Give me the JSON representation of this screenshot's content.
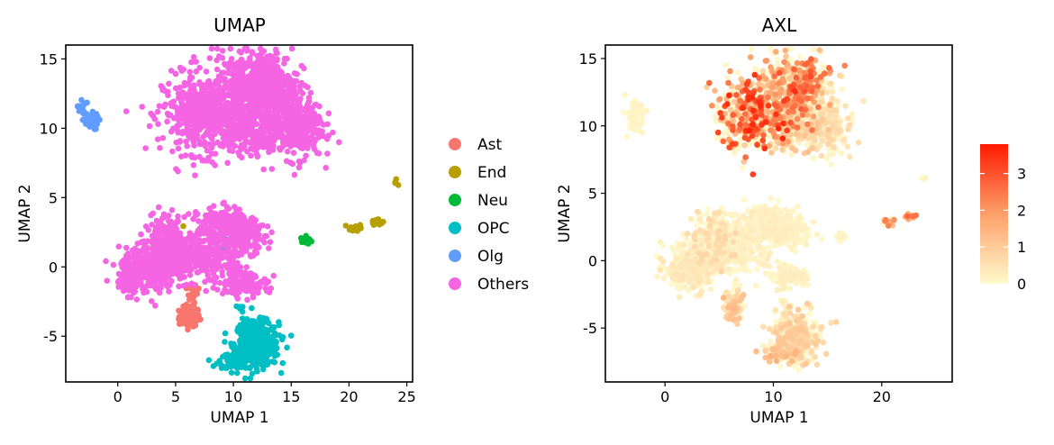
{
  "chart_data": [
    {
      "type": "scatter",
      "title": "UMAP",
      "xlabel": "UMAP 1",
      "ylabel": "UMAP 2",
      "xlim": [
        -4.5,
        25.5
      ],
      "ylim": [
        -8.3,
        16.0
      ],
      "xticks": [
        0,
        5,
        10,
        15,
        20,
        25
      ],
      "yticks": [
        -5,
        0,
        5,
        10,
        15
      ],
      "ytick_labels": [
        "-5",
        "0",
        "5",
        "10",
        "15"
      ],
      "legend_position": "right",
      "grid": false,
      "series": [
        {
          "name": "Ast",
          "color": "#F8766D",
          "clusters": [
            {
              "cx": 6.2,
              "cy": -3.6,
              "sx": 0.45,
              "sy": 0.35,
              "n": 120
            },
            {
              "cx": 6.4,
              "cy": -2.2,
              "sx": 0.2,
              "sy": 0.6,
              "n": 30
            },
            {
              "cx": 6.9,
              "cy": -1.7,
              "sx": 0.3,
              "sy": 0.2,
              "n": 8
            }
          ]
        },
        {
          "name": "End",
          "color": "#B79F00",
          "clusters": [
            {
              "cx": 20.6,
              "cy": 2.8,
              "sx": 0.25,
              "sy": 0.15,
              "n": 18
            },
            {
              "cx": 22.4,
              "cy": 3.3,
              "sx": 0.25,
              "sy": 0.12,
              "n": 18
            },
            {
              "cx": 24.0,
              "cy": 6.1,
              "sx": 0.1,
              "sy": 0.1,
              "n": 5
            },
            {
              "cx": 5.7,
              "cy": 2.9,
              "sx": 0.05,
              "sy": 0.05,
              "n": 1
            }
          ]
        },
        {
          "name": "Neu",
          "color": "#00BA38",
          "clusters": [
            {
              "cx": 16.3,
              "cy": 1.9,
              "sx": 0.25,
              "sy": 0.15,
              "n": 14
            }
          ]
        },
        {
          "name": "OPC",
          "color": "#00BFC4",
          "clusters": [
            {
              "cx": 12.0,
              "cy": -5.6,
              "sx": 0.95,
              "sy": 0.8,
              "n": 420
            },
            {
              "cx": 10.5,
              "cy": -6.8,
              "sx": 0.9,
              "sy": 0.3,
              "n": 80
            },
            {
              "cx": 10.8,
              "cy": -3.5,
              "sx": 0.2,
              "sy": 0.6,
              "n": 14
            },
            {
              "cx": 9.5,
              "cy": 1.6,
              "sx": 0.4,
              "sy": 0.3,
              "n": 6
            }
          ]
        },
        {
          "name": "Olg",
          "color": "#619CFF",
          "clusters": [
            {
              "cx": -2.4,
              "cy": 10.5,
              "sx": 0.35,
              "sy": 0.3,
              "n": 60
            },
            {
              "cx": -3.1,
              "cy": 11.6,
              "sx": 0.2,
              "sy": 0.25,
              "n": 15
            }
          ]
        },
        {
          "name": "Others",
          "color": "#F564E3",
          "clusters": [
            {
              "cx": 7.5,
              "cy": 11.0,
              "sx": 1.8,
              "sy": 1.4,
              "n": 500
            },
            {
              "cx": 10.5,
              "cy": 12.2,
              "sx": 1.6,
              "sy": 1.6,
              "n": 380
            },
            {
              "cx": 13.0,
              "cy": 13.0,
              "sx": 1.3,
              "sy": 1.3,
              "n": 380
            },
            {
              "cx": 15.5,
              "cy": 10.2,
              "sx": 1.1,
              "sy": 1.2,
              "n": 300
            },
            {
              "cx": 12.5,
              "cy": 9.8,
              "sx": 1.3,
              "sy": 0.9,
              "n": 200
            },
            {
              "cx": 2.5,
              "cy": -0.3,
              "sx": 1.2,
              "sy": 0.8,
              "n": 320
            },
            {
              "cx": 4.0,
              "cy": 1.5,
              "sx": 0.9,
              "sy": 1.1,
              "n": 200
            },
            {
              "cx": 6.0,
              "cy": 0.8,
              "sx": 1.2,
              "sy": 0.9,
              "n": 220
            },
            {
              "cx": 9.0,
              "cy": 3.0,
              "sx": 1.0,
              "sy": 0.6,
              "n": 200
            },
            {
              "cx": 11.0,
              "cy": 2.2,
              "sx": 0.9,
              "sy": 0.6,
              "n": 170
            },
            {
              "cx": 8.3,
              "cy": 0.6,
              "sx": 0.5,
              "sy": 1.0,
              "n": 80
            },
            {
              "cx": 11.0,
              "cy": -1.2,
              "sx": 1.0,
              "sy": 0.4,
              "n": 120
            },
            {
              "cx": 10.0,
              "cy": 0.0,
              "sx": 0.3,
              "sy": 1.0,
              "n": 50
            },
            {
              "cx": 1.0,
              "cy": -1.2,
              "sx": 0.4,
              "sy": 0.3,
              "n": 40
            }
          ]
        }
      ]
    },
    {
      "type": "scatter",
      "title": "AXL",
      "xlabel": "UMAP 1",
      "ylabel": "UMAP 2",
      "xlim": [
        -5.5,
        26.5
      ],
      "ylim": [
        -9.0,
        16.0
      ],
      "xticks": [
        0,
        10,
        20
      ],
      "yticks": [
        -5,
        0,
        5,
        10,
        15
      ],
      "ytick_labels": [
        "-5",
        "0",
        "5",
        "10",
        "15"
      ],
      "grid": false,
      "colorbar": {
        "min": 0,
        "max": 3.8,
        "ticks": [
          0,
          1,
          2,
          3
        ],
        "low_color": "#FFFACD",
        "high_color": "#FF1A00",
        "position": "right"
      },
      "clusters": [
        {
          "cx": 8.0,
          "cy": 10.8,
          "sx": 1.6,
          "sy": 1.3,
          "n": 420,
          "expr": 2.3
        },
        {
          "cx": 11.0,
          "cy": 12.2,
          "sx": 1.5,
          "sy": 1.5,
          "n": 320,
          "expr": 1.6
        },
        {
          "cx": 12.8,
          "cy": 13.2,
          "sx": 1.0,
          "sy": 1.0,
          "n": 220,
          "expr": 2.0
        },
        {
          "cx": 15.0,
          "cy": 10.4,
          "sx": 1.0,
          "sy": 1.2,
          "n": 230,
          "expr": 0.5
        },
        {
          "cx": 12.0,
          "cy": 9.8,
          "sx": 1.2,
          "sy": 0.8,
          "n": 160,
          "expr": 0.8
        },
        {
          "cx": -2.6,
          "cy": 10.8,
          "sx": 0.4,
          "sy": 0.6,
          "n": 70,
          "expr": 0.1
        },
        {
          "cx": 2.5,
          "cy": -0.4,
          "sx": 1.3,
          "sy": 0.9,
          "n": 320,
          "expr": 0.3
        },
        {
          "cx": 4.5,
          "cy": 1.7,
          "sx": 1.0,
          "sy": 1.0,
          "n": 200,
          "expr": 0.5
        },
        {
          "cx": 7.0,
          "cy": 1.0,
          "sx": 1.2,
          "sy": 1.0,
          "n": 220,
          "expr": 0.2
        },
        {
          "cx": 9.5,
          "cy": 2.8,
          "sx": 1.1,
          "sy": 0.7,
          "n": 220,
          "expr": 0.2
        },
        {
          "cx": 11.5,
          "cy": 2.2,
          "sx": 0.9,
          "sy": 0.6,
          "n": 160,
          "expr": 0.15
        },
        {
          "cx": 11.5,
          "cy": -1.2,
          "sx": 0.9,
          "sy": 0.4,
          "n": 110,
          "expr": 0.2
        },
        {
          "cx": 6.3,
          "cy": -3.2,
          "sx": 0.4,
          "sy": 0.6,
          "n": 100,
          "expr": 0.9
        },
        {
          "cx": 12.0,
          "cy": -5.7,
          "sx": 1.0,
          "sy": 0.9,
          "n": 380,
          "expr": 0.7
        },
        {
          "cx": 10.5,
          "cy": -6.9,
          "sx": 0.9,
          "sy": 0.3,
          "n": 70,
          "expr": 1.0
        },
        {
          "cx": 11.0,
          "cy": -3.5,
          "sx": 0.2,
          "sy": 0.5,
          "n": 12,
          "expr": 0.2
        },
        {
          "cx": 16.2,
          "cy": 1.8,
          "sx": 0.3,
          "sy": 0.15,
          "n": 14,
          "expr": 0.1
        },
        {
          "cx": 20.6,
          "cy": 2.9,
          "sx": 0.25,
          "sy": 0.15,
          "n": 16,
          "expr": 1.6
        },
        {
          "cx": 22.6,
          "cy": 3.3,
          "sx": 0.25,
          "sy": 0.12,
          "n": 16,
          "expr": 1.8
        },
        {
          "cx": 24.0,
          "cy": 6.1,
          "sx": 0.1,
          "sy": 0.1,
          "n": 4,
          "expr": 0.1
        }
      ]
    }
  ]
}
